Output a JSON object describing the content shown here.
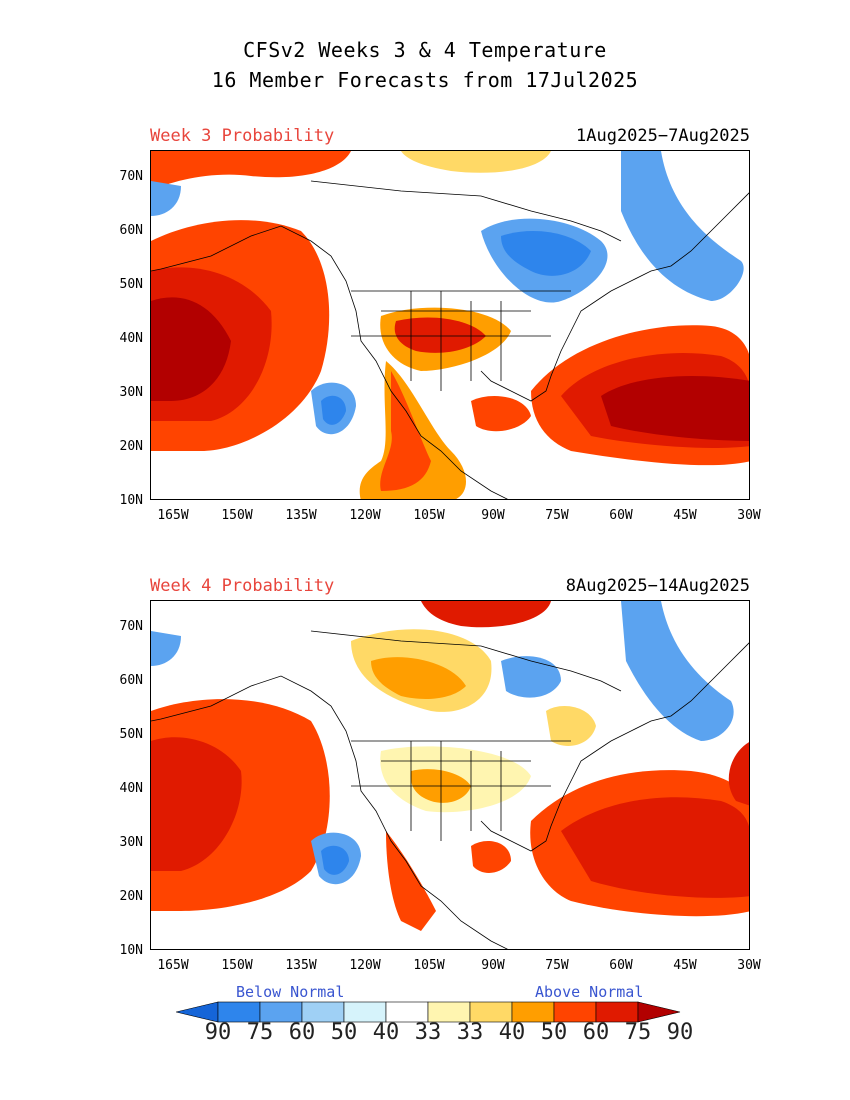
{
  "title_line1": "CFSv2 Weeks 3 & 4 Temperature",
  "title_line2": "16 Member Forecasts from 17Jul2025",
  "panels": [
    {
      "label": "Week 3 Probability",
      "dates": "1Aug2025−7Aug2025"
    },
    {
      "label": "Week 4 Probability",
      "dates": "8Aug2025−14Aug2025"
    }
  ],
  "lat_ticks": [
    "70N",
    "60N",
    "50N",
    "40N",
    "30N",
    "20N",
    "10N"
  ],
  "lon_ticks": [
    "165W",
    "150W",
    "135W",
    "120W",
    "105W",
    "90W",
    "75W",
    "60W",
    "45W",
    "30W"
  ],
  "legend": {
    "below_label": "Below Normal",
    "above_label": "Above Normal",
    "values": [
      "90",
      "75",
      "60",
      "50",
      "40",
      "33",
      "33",
      "40",
      "50",
      "60",
      "75",
      "90"
    ],
    "colors": [
      "#1565d8",
      "#2e85ec",
      "#5ba3f0",
      "#9fd0f5",
      "#d6f3fb",
      "#ffffff",
      "#fff5b0",
      "#ffd966",
      "#ff9e00",
      "#ff4400",
      "#e01a00",
      "#b20000"
    ]
  }
}
